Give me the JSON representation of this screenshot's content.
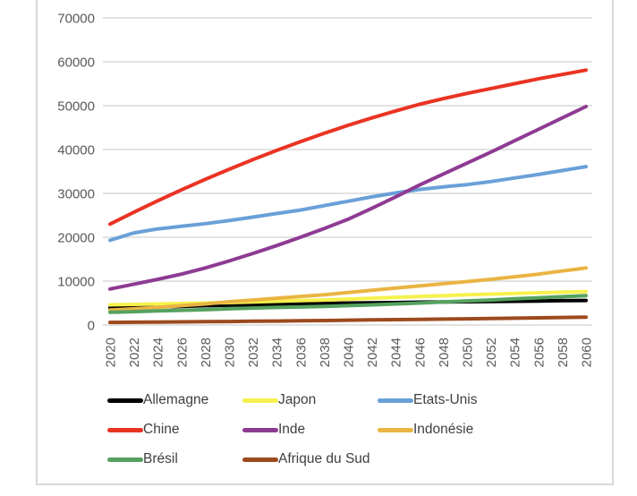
{
  "chart_data": {
    "type": "line",
    "x": [
      2020,
      2022,
      2024,
      2026,
      2028,
      2030,
      2032,
      2034,
      2036,
      2038,
      2040,
      2042,
      2044,
      2046,
      2048,
      2050,
      2052,
      2054,
      2056,
      2058,
      2060
    ],
    "series": [
      {
        "name": "Allemagne",
        "color": "#000000",
        "values": [
          3900,
          4050,
          4150,
          4250,
          4400,
          4500,
          4600,
          4700,
          4800,
          4900,
          5000,
          5050,
          5100,
          5200,
          5250,
          5300,
          5350,
          5400,
          5450,
          5550,
          5600
        ]
      },
      {
        "name": "Japon",
        "color": "#F6F14D",
        "values": [
          4600,
          4700,
          4800,
          4900,
          5000,
          5100,
          5250,
          5400,
          5550,
          5700,
          5900,
          6100,
          6300,
          6500,
          6700,
          6900,
          7050,
          7200,
          7350,
          7500,
          7600
        ]
      },
      {
        "name": "Etats-Unis",
        "color": "#6AA0D8",
        "values": [
          19300,
          21000,
          21900,
          22500,
          23100,
          23800,
          24600,
          25400,
          26200,
          27200,
          28200,
          29200,
          30100,
          30900,
          31500,
          32000,
          32700,
          33500,
          34300,
          35200,
          36100
        ]
      },
      {
        "name": "Chine",
        "color": "#EA3323",
        "values": [
          23000,
          25700,
          28300,
          30800,
          33200,
          35500,
          37700,
          39800,
          41800,
          43700,
          45500,
          47200,
          48800,
          50300,
          51600,
          52800,
          53900,
          55000,
          56100,
          57100,
          58100
        ]
      },
      {
        "name": "Inde",
        "color": "#8E3B94",
        "values": [
          8200,
          9300,
          10400,
          11600,
          13000,
          14600,
          16300,
          18100,
          20000,
          22000,
          24100,
          26600,
          29200,
          31900,
          34400,
          36900,
          39400,
          42000,
          44600,
          47200,
          49800
        ]
      },
      {
        "name": "Indonésie",
        "color": "#E9B442",
        "values": [
          3400,
          3700,
          4000,
          4400,
          4800,
          5300,
          5700,
          6100,
          6500,
          6900,
          7400,
          7900,
          8400,
          8900,
          9400,
          9900,
          10400,
          11000,
          11600,
          12300,
          13000
        ]
      },
      {
        "name": "Brésil",
        "color": "#55A25F",
        "values": [
          2900,
          3050,
          3200,
          3350,
          3500,
          3700,
          3850,
          4000,
          4100,
          4250,
          4400,
          4600,
          4800,
          5000,
          5250,
          5500,
          5700,
          5950,
          6200,
          6450,
          6700
        ]
      },
      {
        "name": "Afrique du Sud",
        "color": "#9C4A1E",
        "values": [
          600,
          640,
          680,
          720,
          760,
          800,
          850,
          900,
          960,
          1030,
          1100,
          1160,
          1220,
          1280,
          1340,
          1400,
          1470,
          1550,
          1630,
          1710,
          1800
        ]
      }
    ],
    "title": "",
    "xlabel": "",
    "ylabel": "",
    "ylim": [
      0,
      70000
    ],
    "y_tick_step": 10000,
    "y_tick_labels": [
      "0",
      "10000",
      "20000",
      "30000",
      "40000",
      "50000",
      "60000",
      "70000"
    ],
    "x_tick_labels": [
      "2020",
      "2022",
      "2024",
      "2026",
      "2028",
      "2030",
      "2032",
      "2034",
      "2036",
      "2038",
      "2040",
      "2042",
      "2044",
      "2046",
      "2048",
      "2050",
      "2052",
      "2054",
      "2056",
      "2058",
      "2060"
    ],
    "grid": true,
    "legend_position": "bottom"
  },
  "styles": {
    "background": "#FFFFFF",
    "grid_color": "#D9D9D9",
    "axis_text_color": "#595959",
    "legend_text_color": "#3F3F3F",
    "frame_border_color": "#D8D8D8"
  }
}
